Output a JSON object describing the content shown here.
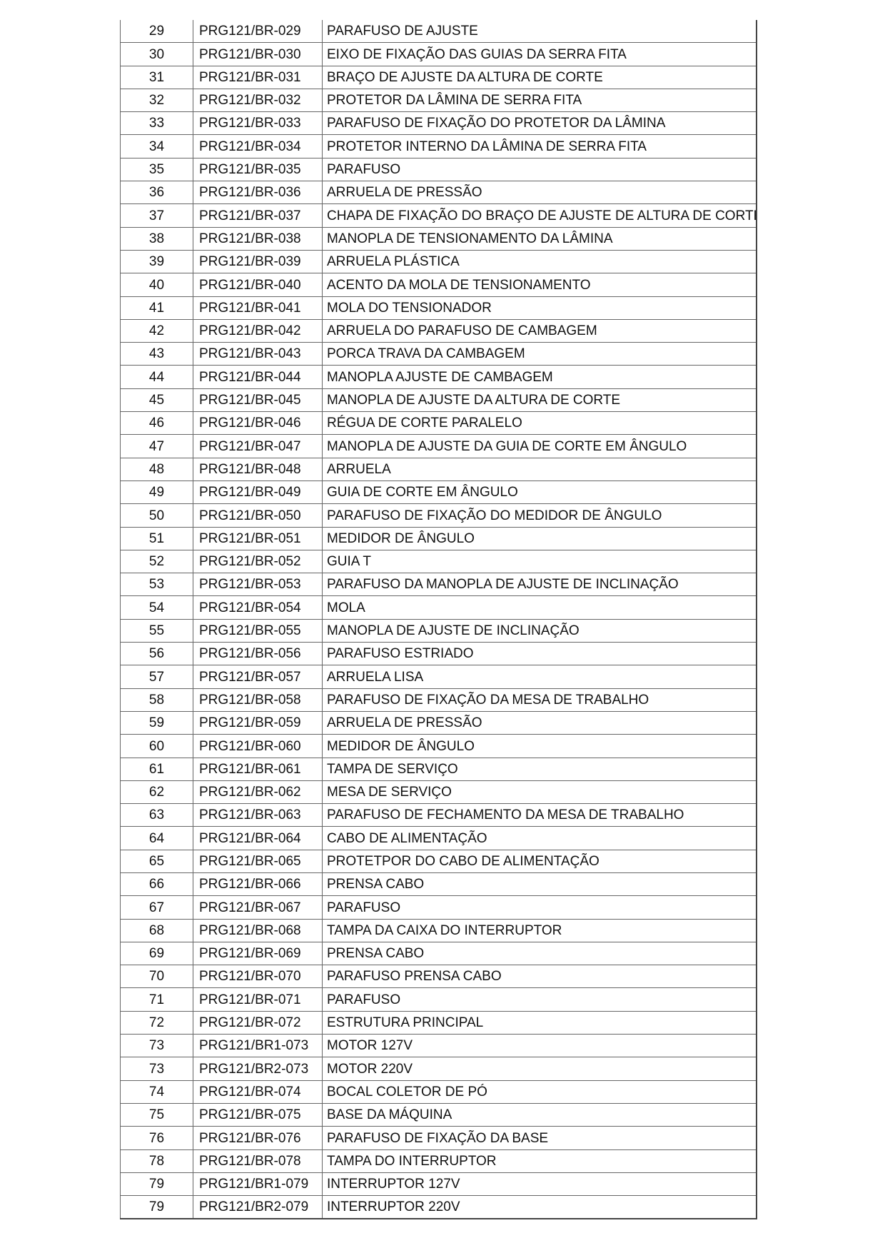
{
  "rows": [
    [
      "29",
      "PRG121/BR-029",
      "PARAFUSO DE AJUSTE"
    ],
    [
      "30",
      "PRG121/BR-030",
      "EIXO DE FIXAÇÃO DAS GUIAS DA SERRA FITA"
    ],
    [
      "31",
      "PRG121/BR-031",
      "BRAÇO DE AJUSTE DA ALTURA DE CORTE"
    ],
    [
      "32",
      "PRG121/BR-032",
      "PROTETOR DA LÂMINA DE SERRA FITA"
    ],
    [
      "33",
      "PRG121/BR-033",
      "PARAFUSO DE FIXAÇÃO DO PROTETOR DA LÂMINA"
    ],
    [
      "34",
      "PRG121/BR-034",
      "PROTETOR INTERNO DA LÂMINA DE SERRA FITA"
    ],
    [
      "35",
      "PRG121/BR-035",
      "PARAFUSO"
    ],
    [
      "36",
      "PRG121/BR-036",
      "ARRUELA DE PRESSÃO"
    ],
    [
      "37",
      "PRG121/BR-037",
      "CHAPA DE FIXAÇÃO DO BRAÇO DE AJUSTE DE ALTURA DE CORTE"
    ],
    [
      "38",
      "PRG121/BR-038",
      "MANOPLA DE TENSIONAMENTO DA LÂMINA"
    ],
    [
      "39",
      "PRG121/BR-039",
      "ARRUELA PLÁSTICA"
    ],
    [
      "40",
      "PRG121/BR-040",
      "ACENTO DA MOLA DE TENSIONAMENTO"
    ],
    [
      "41",
      "PRG121/BR-041",
      "MOLA DO TENSIONADOR"
    ],
    [
      "42",
      "PRG121/BR-042",
      "ARRUELA DO PARAFUSO DE CAMBAGEM"
    ],
    [
      "43",
      "PRG121/BR-043",
      "PORCA TRAVA DA CAMBAGEM"
    ],
    [
      "44",
      "PRG121/BR-044",
      "MANOPLA AJUSTE DE CAMBAGEM"
    ],
    [
      "45",
      "PRG121/BR-045",
      "MANOPLA DE AJUSTE DA ALTURA DE CORTE"
    ],
    [
      "46",
      "PRG121/BR-046",
      "RÉGUA DE CORTE PARALELO"
    ],
    [
      "47",
      "PRG121/BR-047",
      "MANOPLA DE AJUSTE DA GUIA DE CORTE EM ÂNGULO"
    ],
    [
      "48",
      "PRG121/BR-048",
      "ARRUELA"
    ],
    [
      "49",
      "PRG121/BR-049",
      "GUIA DE CORTE EM ÂNGULO"
    ],
    [
      "50",
      "PRG121/BR-050",
      "PARAFUSO DE FIXAÇÃO DO MEDIDOR DE ÂNGULO"
    ],
    [
      "51",
      "PRG121/BR-051",
      "MEDIDOR DE ÂNGULO"
    ],
    [
      "52",
      "PRG121/BR-052",
      "GUIA T"
    ],
    [
      "53",
      "PRG121/BR-053",
      "PARAFUSO DA MANOPLA DE AJUSTE DE INCLINAÇÃO"
    ],
    [
      "54",
      "PRG121/BR-054",
      "MOLA"
    ],
    [
      "55",
      "PRG121/BR-055",
      "MANOPLA DE AJUSTE DE INCLINAÇÃO"
    ],
    [
      "56",
      "PRG121/BR-056",
      "PARAFUSO ESTRIADO"
    ],
    [
      "57",
      "PRG121/BR-057",
      "ARRUELA LISA"
    ],
    [
      "58",
      "PRG121/BR-058",
      "PARAFUSO DE FIXAÇÃO DA MESA DE TRABALHO"
    ],
    [
      "59",
      "PRG121/BR-059",
      "ARRUELA DE PRESSÃO"
    ],
    [
      "60",
      "PRG121/BR-060",
      "MEDIDOR DE ÂNGULO"
    ],
    [
      "61",
      "PRG121/BR-061",
      "TAMPA DE SERVIÇO"
    ],
    [
      "62",
      "PRG121/BR-062",
      "MESA DE SERVIÇO"
    ],
    [
      "63",
      "PRG121/BR-063",
      "PARAFUSO DE FECHAMENTO DA MESA DE TRABALHO"
    ],
    [
      "64",
      "PRG121/BR-064",
      "CABO DE ALIMENTAÇÃO"
    ],
    [
      "65",
      "PRG121/BR-065",
      "PROTETPOR DO CABO DE ALIMENTAÇÃO"
    ],
    [
      "66",
      "PRG121/BR-066",
      "PRENSA CABO"
    ],
    [
      "67",
      "PRG121/BR-067",
      "PARAFUSO"
    ],
    [
      "68",
      "PRG121/BR-068",
      "TAMPA DA CAIXA DO INTERRUPTOR"
    ],
    [
      "69",
      "PRG121/BR-069",
      "PRENSA CABO"
    ],
    [
      "70",
      "PRG121/BR-070",
      "PARAFUSO PRENSA CABO"
    ],
    [
      "71",
      "PRG121/BR-071",
      "PARAFUSO"
    ],
    [
      "72",
      "PRG121/BR-072",
      "ESTRUTURA PRINCIPAL"
    ],
    [
      "73",
      "PRG121/BR1-073",
      "MOTOR 127V"
    ],
    [
      "73",
      "PRG121/BR2-073",
      "MOTOR 220V"
    ],
    [
      "74",
      "PRG121/BR-074",
      "BOCAL COLETOR DE PÓ"
    ],
    [
      "75",
      "PRG121/BR-075",
      "BASE DA MÁQUINA"
    ],
    [
      "76",
      "PRG121/BR-076",
      "PARAFUSO DE FIXAÇÃO DA BASE"
    ],
    [
      "78",
      "PRG121/BR-078",
      "TAMPA DO INTERRUPTOR"
    ],
    [
      "79",
      "PRG121/BR1-079",
      "INTERRUPTOR 127V"
    ],
    [
      "79",
      "PRG121/BR2-079",
      "INTERRUPTOR 220V"
    ]
  ]
}
